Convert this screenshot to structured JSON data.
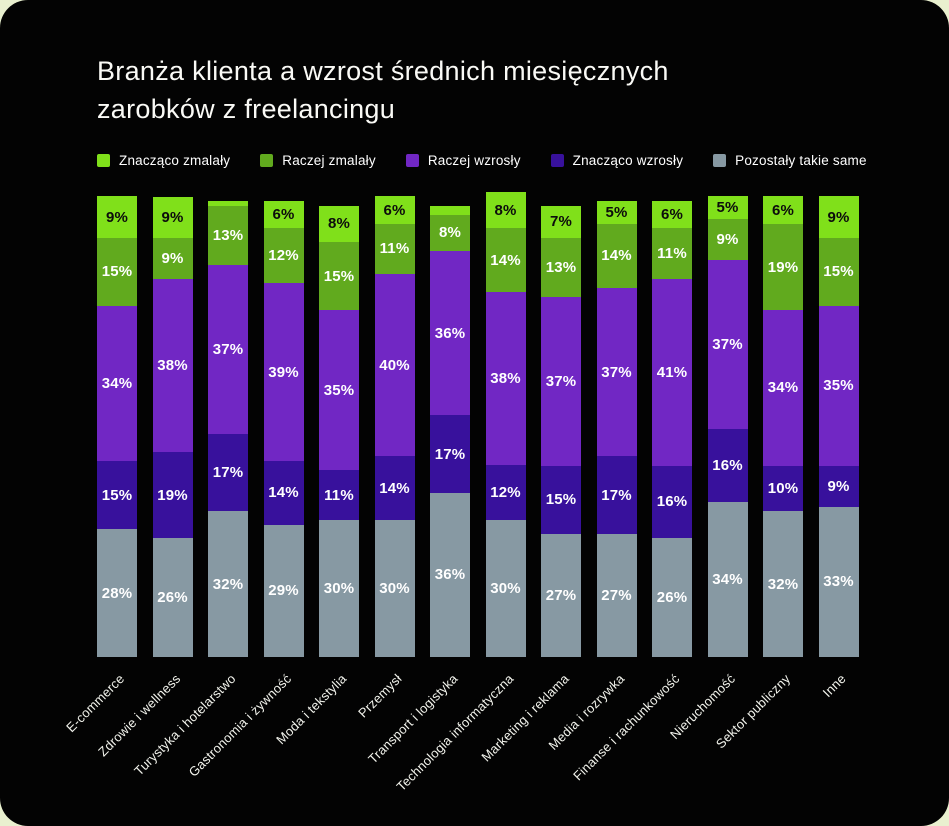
{
  "title": {
    "line1": "Branża klienta a wzrost średnich miesięcznych",
    "line2": "zarobków z freelancingu"
  },
  "colors": {
    "panel_background": "#030303",
    "page_background": "#e9f0cf",
    "title_text": "#fafaf6",
    "axis_label_text": "#f2f3ec"
  },
  "chart_data": {
    "type": "bar",
    "stacked": true,
    "percent_unit": "%",
    "title": "Branża klienta a wzrost średnich miesięcznych zarobków z freelancingu",
    "legend_position": "top",
    "categories": [
      "E-commerce",
      "Zdrowie i wellness",
      "Turystyka i hotelarstwo",
      "Gastronomia i żywność",
      "Moda i tekstylia",
      "Przemysł",
      "Transport i logistyka",
      "Technologia informatyczna",
      "Marketing i reklama",
      "Media i rozrywka",
      "Finanse i rachunkowość",
      "Nieruchomość",
      "Sektor publiczny",
      "Inne"
    ],
    "series": [
      {
        "name": "Znacząco zmalały",
        "color": "#80e01a",
        "label_color": "#0c0c0c",
        "values": [
          9,
          9,
          1,
          6,
          8,
          6,
          2,
          8,
          7,
          5,
          6,
          5,
          6,
          9
        ]
      },
      {
        "name": "Raczej zmalały",
        "color": "#61aa1e",
        "label_color": "#ffffff",
        "values": [
          15,
          9,
          13,
          12,
          15,
          11,
          8,
          14,
          13,
          14,
          11,
          9,
          19,
          15
        ]
      },
      {
        "name": "Raczej wzrosły",
        "color": "#7127c4",
        "label_color": "#ffffff",
        "values": [
          34,
          38,
          37,
          39,
          35,
          40,
          36,
          38,
          37,
          37,
          41,
          37,
          34,
          35
        ]
      },
      {
        "name": "Znacząco wzrosły",
        "color": "#38119c",
        "label_color": "#ffffff",
        "values": [
          15,
          19,
          17,
          14,
          11,
          14,
          17,
          12,
          15,
          17,
          16,
          16,
          10,
          9
        ]
      },
      {
        "name": "Pozostały takie same",
        "color": "#8799a3",
        "label_color": "#ffffff",
        "values": [
          28,
          26,
          32,
          29,
          30,
          30,
          36,
          30,
          27,
          27,
          26,
          34,
          32,
          33
        ]
      }
    ]
  }
}
